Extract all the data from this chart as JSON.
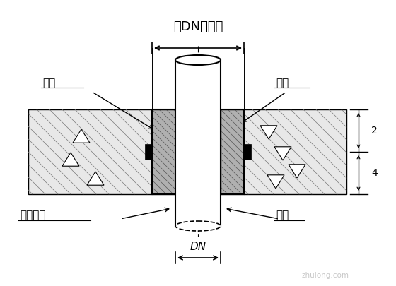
{
  "bg_color": "#ffffff",
  "line_color": "#000000",
  "wall_fill": "#e8e8e8",
  "sleeve_grey": "#aaaaaa",
  "labels": {
    "top_dim": "比DN大二号",
    "oil_hemp": "油麻",
    "sleeve": "套管",
    "asbestos": "石棉水泥",
    "small_pipe": "小管",
    "dn": "DN"
  },
  "watermark": "zhulong.com"
}
